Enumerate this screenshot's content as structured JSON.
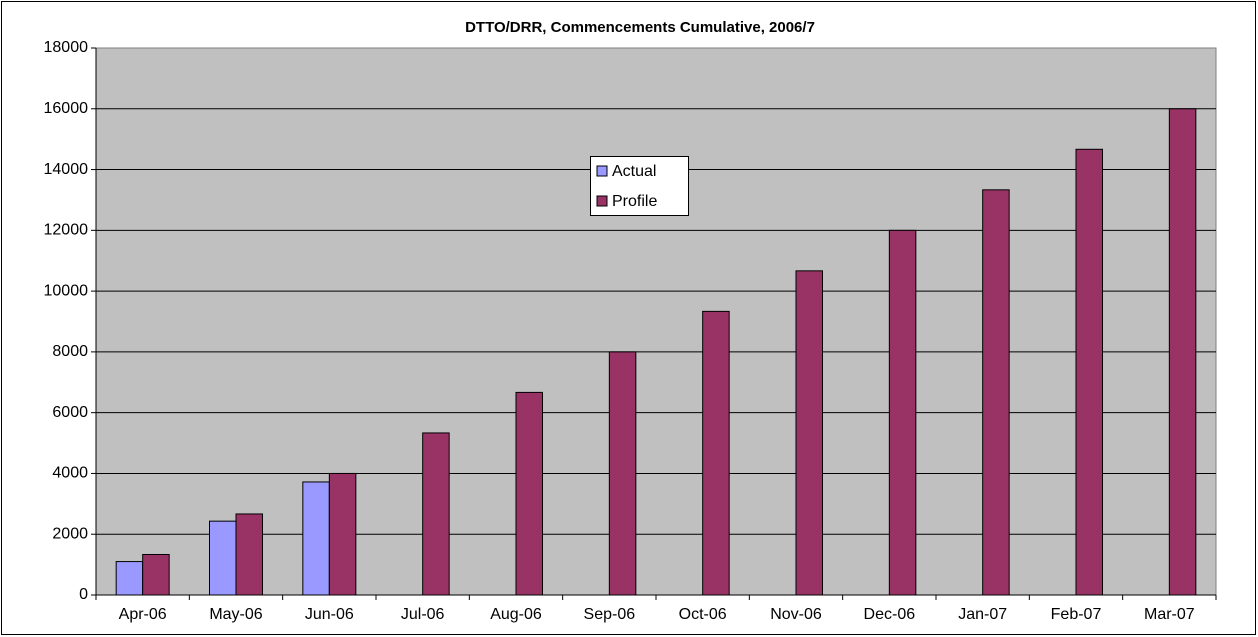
{
  "chart_data": {
    "type": "bar",
    "title": "DTTO/DRR, Commencements Cumulative, 2006/7",
    "categories": [
      "Apr-06",
      "May-06",
      "Jun-06",
      "Jul-06",
      "Aug-06",
      "Sep-06",
      "Oct-06",
      "Nov-06",
      "Dec-06",
      "Jan-07",
      "Feb-07",
      "Mar-07"
    ],
    "series": [
      {
        "name": "Actual",
        "color": "#9999ff",
        "values": [
          1100,
          2430,
          3720,
          null,
          null,
          null,
          null,
          null,
          null,
          null,
          null,
          null
        ]
      },
      {
        "name": "Profile",
        "color": "#993366",
        "values": [
          1333,
          2667,
          4000,
          5333,
          6667,
          8000,
          9333,
          10667,
          12000,
          13333,
          14667,
          16000
        ]
      }
    ],
    "ylim": [
      0,
      18000
    ],
    "yticks": [
      0,
      2000,
      4000,
      6000,
      8000,
      10000,
      12000,
      14000,
      16000,
      18000
    ],
    "grid": true,
    "plot_background": "#c0c0c0"
  }
}
